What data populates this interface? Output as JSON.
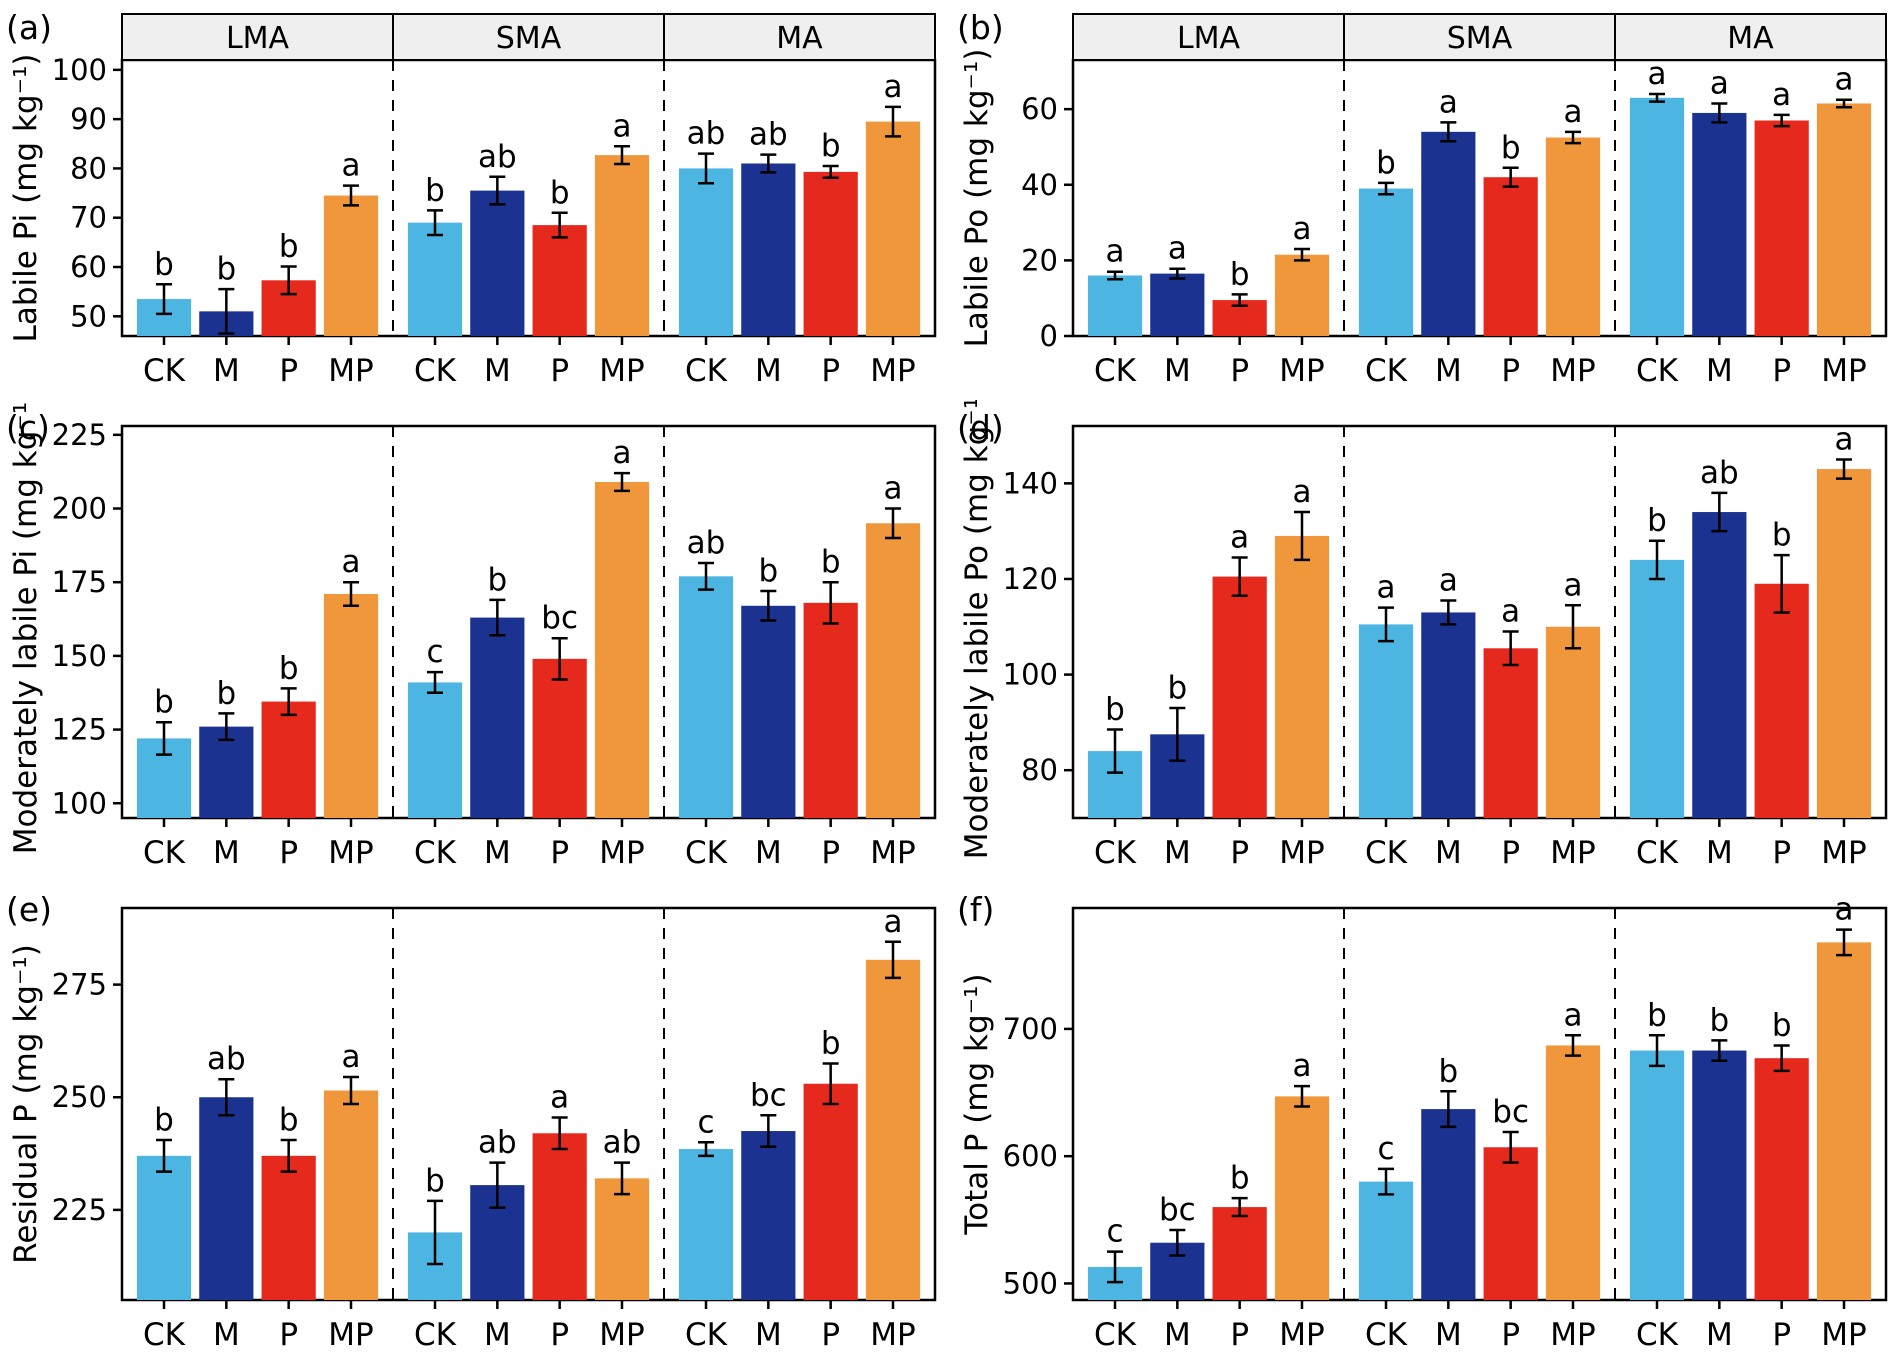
{
  "figure": {
    "treatments": [
      "CK",
      "M",
      "P",
      "MP"
    ],
    "groups": [
      "LMA",
      "SMA",
      "MA"
    ],
    "colors": {
      "CK": "#4DB5E2",
      "M": "#1B3291",
      "P": "#E5291D",
      "MP": "#F0973C"
    },
    "header_fill": "#efefef"
  },
  "chart_data": [
    {
      "type": "bar",
      "panel_label": "(a)",
      "ylabel": "Labile Pi (mg kg⁻¹)",
      "ylim": [
        46,
        102
      ],
      "yticks": [
        50,
        60,
        70,
        80,
        90,
        100
      ],
      "show_group_headers": true,
      "group_headers": [
        "LMA",
        "SMA",
        "MA"
      ],
      "categories": [
        "CK",
        "M",
        "P",
        "MP"
      ],
      "series": [
        {
          "group": "LMA",
          "values": [
            53.5,
            51,
            57.3,
            74.5
          ],
          "errors": [
            3,
            4.5,
            2.8,
            2
          ],
          "letters": [
            "b",
            "b",
            "b",
            "a"
          ]
        },
        {
          "group": "SMA",
          "values": [
            69,
            75.5,
            68.5,
            82.7
          ],
          "errors": [
            2.5,
            2.8,
            2.5,
            1.8
          ],
          "letters": [
            "b",
            "ab",
            "b",
            "a"
          ]
        },
        {
          "group": "MA",
          "values": [
            80,
            81,
            79.3,
            89.5
          ],
          "errors": [
            3,
            1.8,
            1.2,
            3
          ],
          "letters": [
            "ab",
            "ab",
            "b",
            "a"
          ]
        }
      ]
    },
    {
      "type": "bar",
      "panel_label": "(b)",
      "ylabel": "Labile Po (mg kg⁻¹)",
      "ylim": [
        0,
        73
      ],
      "yticks": [
        0,
        20,
        40,
        60
      ],
      "show_group_headers": true,
      "group_headers": [
        "LMA",
        "SMA",
        "MA"
      ],
      "categories": [
        "CK",
        "M",
        "P",
        "MP"
      ],
      "series": [
        {
          "group": "LMA",
          "values": [
            16,
            16.5,
            9.5,
            21.5
          ],
          "errors": [
            1,
            1.3,
            1.5,
            1.5
          ],
          "letters": [
            "a",
            "a",
            "b",
            "a"
          ]
        },
        {
          "group": "SMA",
          "values": [
            39,
            54,
            42,
            52.5
          ],
          "errors": [
            1.5,
            2.5,
            2.5,
            1.5
          ],
          "letters": [
            "b",
            "a",
            "b",
            "a"
          ]
        },
        {
          "group": "MA",
          "values": [
            63,
            59,
            57,
            61.5
          ],
          "errors": [
            1,
            2.5,
            1.5,
            1
          ],
          "letters": [
            "a",
            "a",
            "a",
            "a"
          ]
        }
      ]
    },
    {
      "type": "bar",
      "panel_label": "(c)",
      "ylabel": "Moderately labile Pi (mg kg⁻¹)",
      "ylim": [
        95,
        228
      ],
      "yticks": [
        100,
        125,
        150,
        175,
        200,
        225
      ],
      "show_group_headers": false,
      "group_headers": [
        "LMA",
        "SMA",
        "MA"
      ],
      "categories": [
        "CK",
        "M",
        "P",
        "MP"
      ],
      "series": [
        {
          "group": "LMA",
          "values": [
            122,
            126,
            134.5,
            171
          ],
          "errors": [
            5.5,
            4.5,
            4.5,
            4
          ],
          "letters": [
            "b",
            "b",
            "b",
            "a"
          ]
        },
        {
          "group": "SMA",
          "values": [
            141,
            163,
            149,
            209
          ],
          "errors": [
            3.5,
            6,
            7,
            3
          ],
          "letters": [
            "c",
            "b",
            "bc",
            "a"
          ]
        },
        {
          "group": "MA",
          "values": [
            177,
            167,
            168,
            195
          ],
          "errors": [
            4.5,
            5,
            7,
            5
          ],
          "letters": [
            "ab",
            "b",
            "b",
            "a"
          ]
        }
      ]
    },
    {
      "type": "bar",
      "panel_label": "(d)",
      "ylabel": "Moderately labile Po (mg kg⁻¹)",
      "ylim": [
        70,
        152
      ],
      "yticks": [
        80,
        100,
        120,
        140
      ],
      "show_group_headers": false,
      "group_headers": [
        "LMA",
        "SMA",
        "MA"
      ],
      "categories": [
        "CK",
        "M",
        "P",
        "MP"
      ],
      "series": [
        {
          "group": "LMA",
          "values": [
            84,
            87.5,
            120.5,
            129
          ],
          "errors": [
            4.5,
            5.5,
            4,
            5
          ],
          "letters": [
            "b",
            "b",
            "a",
            "a"
          ]
        },
        {
          "group": "SMA",
          "values": [
            110.5,
            113,
            105.5,
            110
          ],
          "errors": [
            3.5,
            2.5,
            3.5,
            4.5
          ],
          "letters": [
            "a",
            "a",
            "a",
            "a"
          ]
        },
        {
          "group": "MA",
          "values": [
            124,
            134,
            119,
            143
          ],
          "errors": [
            4,
            4,
            6,
            2
          ],
          "letters": [
            "b",
            "ab",
            "b",
            "a"
          ]
        }
      ]
    },
    {
      "type": "bar",
      "panel_label": "(e)",
      "ylabel": "Residual P (mg kg⁻¹)",
      "ylim": [
        205,
        292
      ],
      "yticks": [
        225,
        250,
        275
      ],
      "show_group_headers": false,
      "group_headers": [
        "LMA",
        "SMA",
        "MA"
      ],
      "categories": [
        "CK",
        "M",
        "P",
        "MP"
      ],
      "series": [
        {
          "group": "LMA",
          "values": [
            237,
            250,
            237,
            251.5
          ],
          "errors": [
            3.5,
            4,
            3.5,
            3
          ],
          "letters": [
            "b",
            "ab",
            "b",
            "a"
          ]
        },
        {
          "group": "SMA",
          "values": [
            220,
            230.5,
            242,
            232
          ],
          "errors": [
            7,
            5,
            3.5,
            3.5
          ],
          "letters": [
            "b",
            "ab",
            "a",
            "ab"
          ]
        },
        {
          "group": "MA",
          "values": [
            238.5,
            242.5,
            253,
            280.5
          ],
          "errors": [
            1.5,
            3.5,
            4.5,
            4
          ],
          "letters": [
            "c",
            "bc",
            "b",
            "a"
          ]
        }
      ]
    },
    {
      "type": "bar",
      "panel_label": "(f)",
      "ylabel": "Total P (mg kg⁻¹)",
      "ylim": [
        487,
        795
      ],
      "yticks": [
        500,
        600,
        700
      ],
      "show_group_headers": false,
      "group_headers": [
        "LMA",
        "SMA",
        "MA"
      ],
      "categories": [
        "CK",
        "M",
        "P",
        "MP"
      ],
      "series": [
        {
          "group": "LMA",
          "values": [
            513,
            532,
            560,
            647
          ],
          "errors": [
            12,
            10,
            7,
            8
          ],
          "letters": [
            "c",
            "bc",
            "b",
            "a"
          ]
        },
        {
          "group": "SMA",
          "values": [
            580,
            637,
            607,
            687
          ],
          "errors": [
            10,
            14,
            12,
            8
          ],
          "letters": [
            "c",
            "b",
            "bc",
            "a"
          ]
        },
        {
          "group": "MA",
          "values": [
            683,
            683,
            677,
            768
          ],
          "errors": [
            12,
            8,
            10,
            10
          ],
          "letters": [
            "b",
            "b",
            "b",
            "a"
          ]
        }
      ]
    }
  ]
}
